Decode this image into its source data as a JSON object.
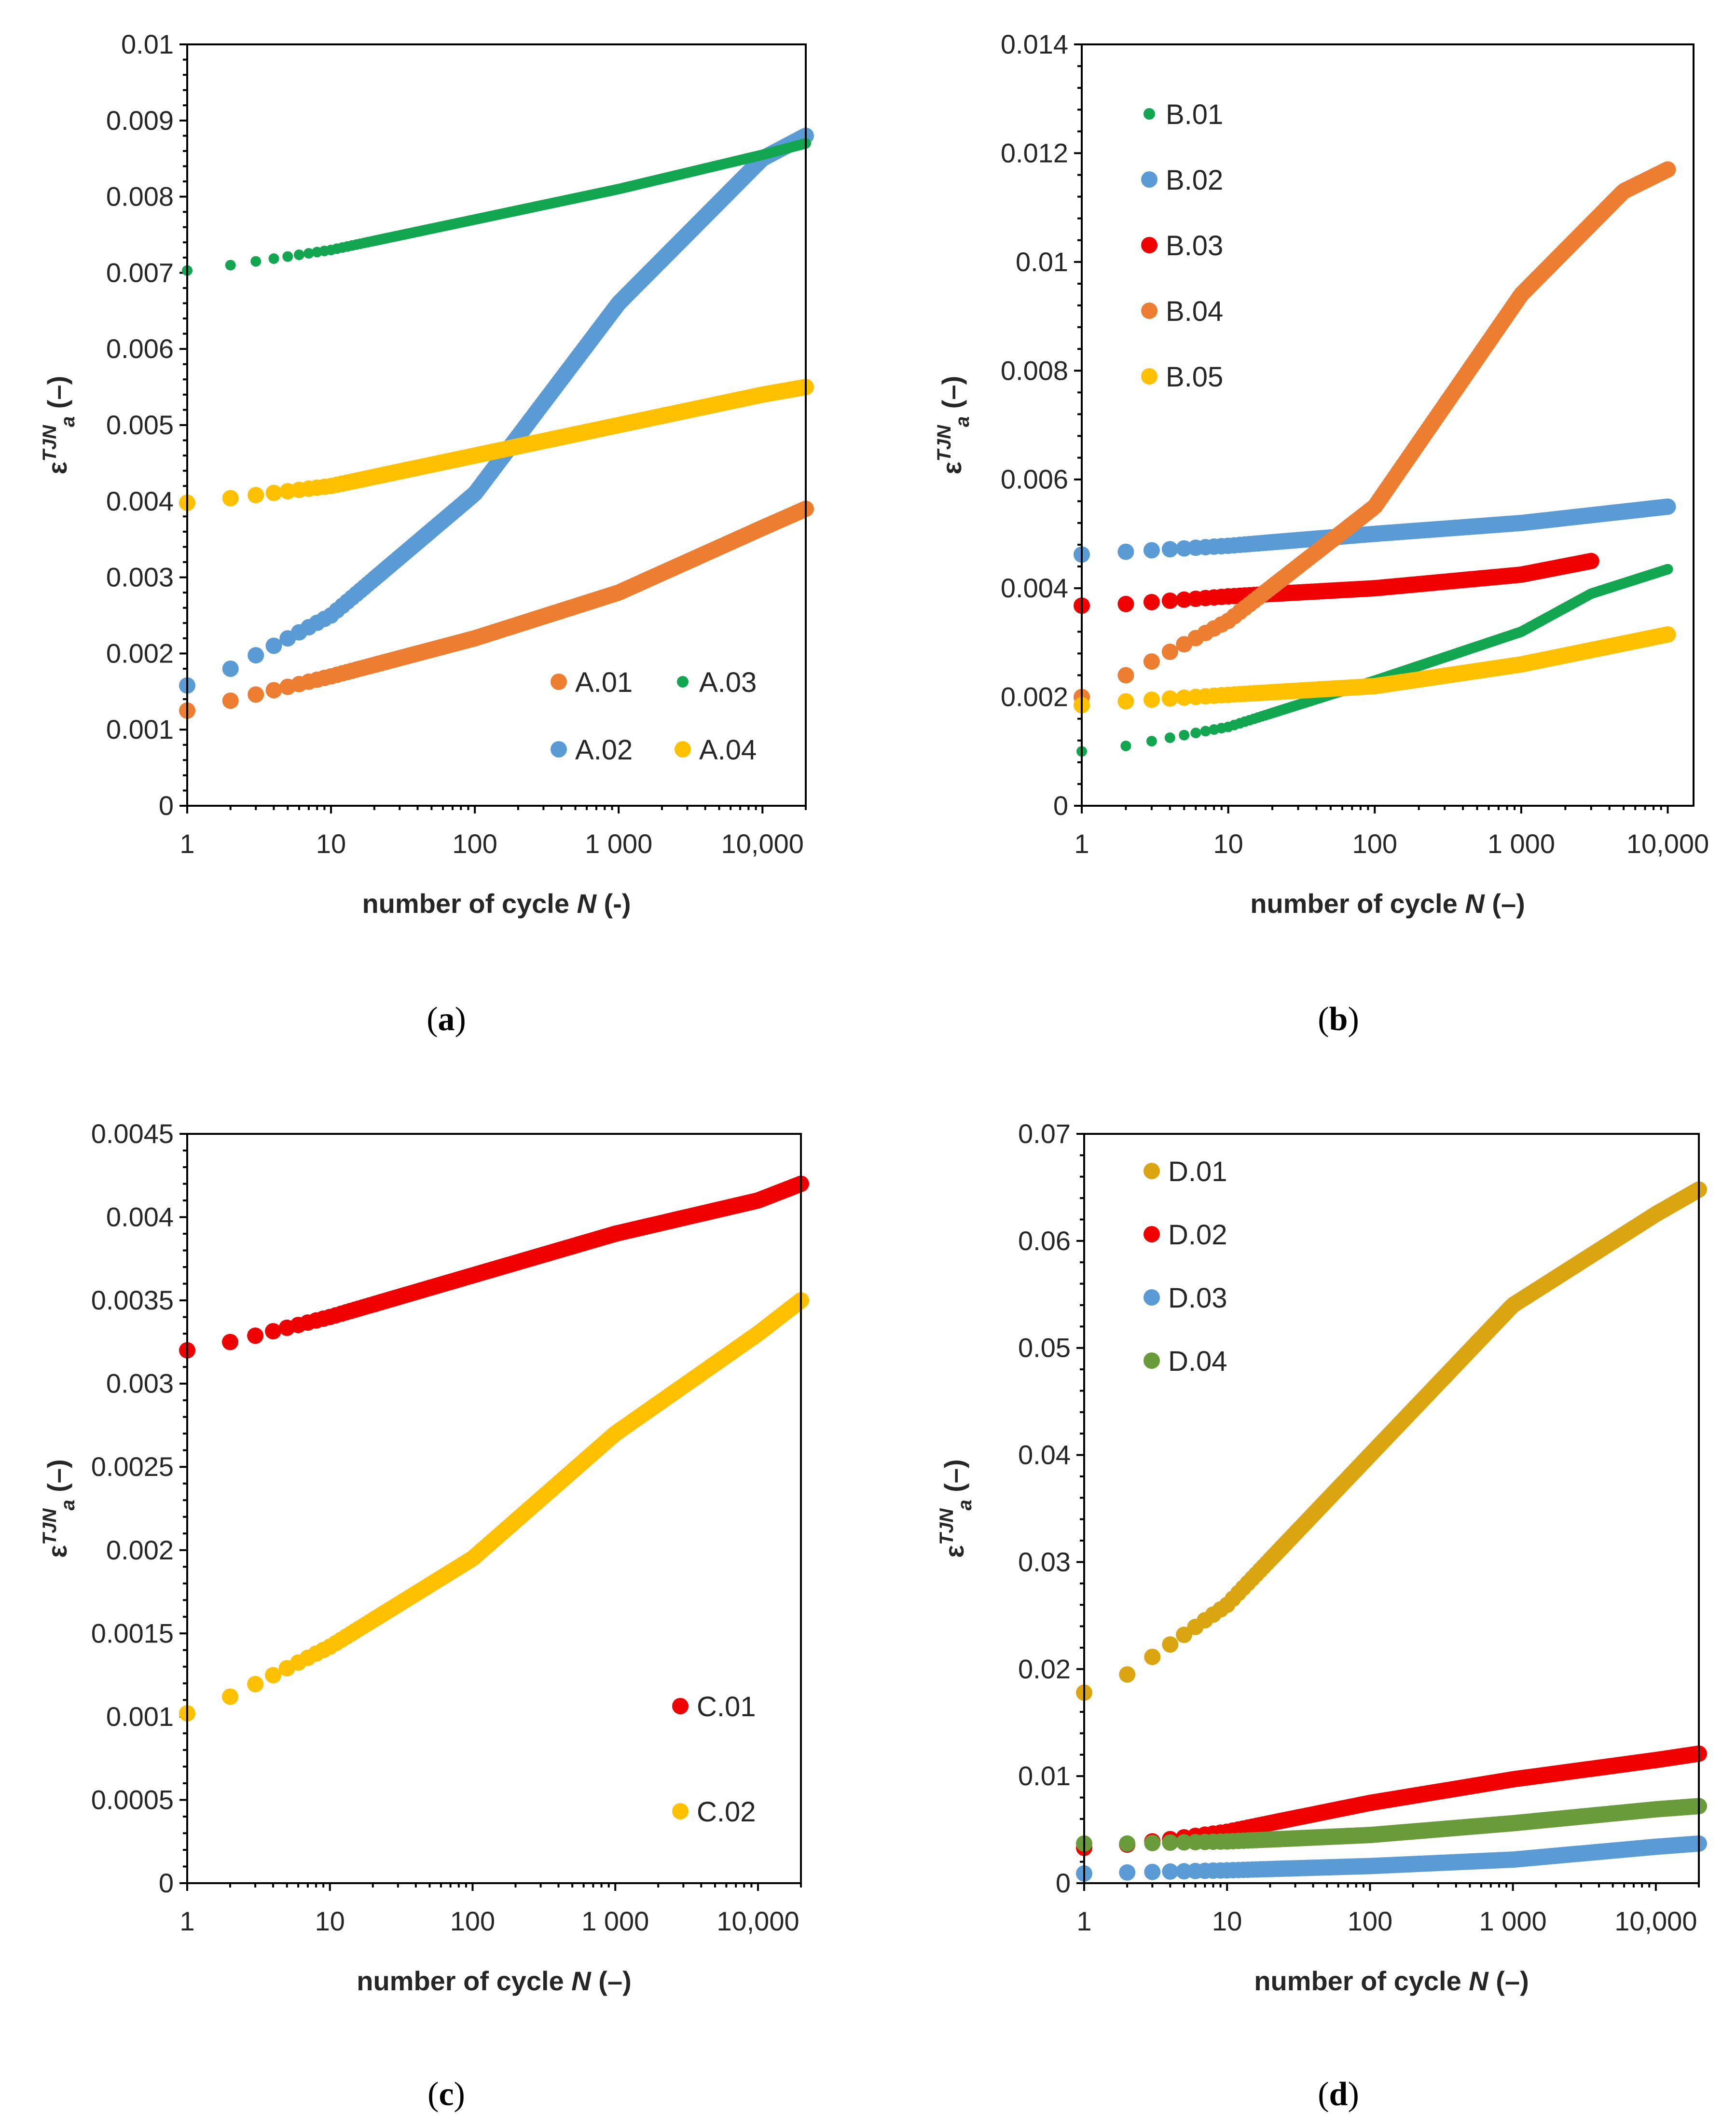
{
  "colors": {
    "orange": "#ED7D31",
    "blue": "#5B9BD5",
    "green": "#13A651",
    "yellow": "#FFC000",
    "red": "#F00000",
    "gold": "#DAA511",
    "olive": "#6A9B3A"
  },
  "chart_data": [
    {
      "type": "scatter",
      "panel": "a",
      "caption_letter": "a",
      "xscale": "log",
      "xlim": [
        1,
        20000
      ],
      "ylim": [
        0,
        0.01
      ],
      "yticks": [
        "0",
        "0.001",
        "0.002",
        "0.003",
        "0.004",
        "0.005",
        "0.006",
        "0.007",
        "0.008",
        "0.009",
        "0.01"
      ],
      "xticks": [
        "1",
        "10",
        "100",
        "1 000",
        "10,000"
      ],
      "ylabel": "ε^TJN_a (–)",
      "xlabel": "number of cycle N (-)",
      "legend_layout": "bottom-right, 2 columns",
      "series": [
        {
          "name": "A.01",
          "color": "#ED7D31",
          "marker": "large",
          "x": [
            1,
            2,
            10,
            100,
            1000,
            10000,
            20000
          ],
          "y": [
            0.00125,
            0.00138,
            0.0017,
            0.0022,
            0.0028,
            0.00365,
            0.0039
          ]
        },
        {
          "name": "A.02",
          "color": "#5B9BD5",
          "marker": "large",
          "x": [
            1,
            2,
            10,
            100,
            1000,
            10000,
            20000
          ],
          "y": [
            0.00158,
            0.0018,
            0.0025,
            0.0041,
            0.0066,
            0.0085,
            0.0088
          ]
        },
        {
          "name": "A.03",
          "color": "#13A651",
          "marker": "small",
          "x": [
            1,
            2,
            10,
            100,
            1000,
            10000,
            20000
          ],
          "y": [
            0.00703,
            0.0071,
            0.0073,
            0.0077,
            0.0081,
            0.00855,
            0.0087
          ]
        },
        {
          "name": "A.04",
          "color": "#FFC000",
          "marker": "large",
          "x": [
            1,
            2,
            10,
            100,
            1000,
            10000,
            20000
          ],
          "y": [
            0.00398,
            0.00404,
            0.0042,
            0.0046,
            0.005,
            0.0054,
            0.0055
          ]
        }
      ]
    },
    {
      "type": "scatter",
      "panel": "b",
      "caption_letter": "b",
      "xscale": "log",
      "xlim": [
        1,
        15000
      ],
      "ylim": [
        0,
        0.014
      ],
      "yticks": [
        "0",
        "0.002",
        "0.004",
        "0.006",
        "0.008",
        "0.01",
        "0.012",
        "0.014"
      ],
      "xticks": [
        "1",
        "10",
        "100",
        "1 000",
        "10,000"
      ],
      "ylabel": "ε^TJN_a (–)",
      "xlabel": "number of cycle N (–)",
      "legend_layout": "top-left, 1 column",
      "series": [
        {
          "name": "B.01",
          "color": "#13A651",
          "marker": "small",
          "x": [
            1,
            2,
            10,
            100,
            1000,
            3000,
            10000
          ],
          "y": [
            0.001,
            0.0011,
            0.00145,
            0.0023,
            0.0032,
            0.0039,
            0.00435
          ]
        },
        {
          "name": "B.02",
          "color": "#5B9BD5",
          "marker": "large",
          "x": [
            1,
            2,
            10,
            100,
            1000,
            10000
          ],
          "y": [
            0.00462,
            0.00467,
            0.00478,
            0.005,
            0.0052,
            0.0055
          ]
        },
        {
          "name": "B.03",
          "color": "#F00000",
          "marker": "large",
          "x": [
            1,
            2,
            10,
            100,
            1000,
            3000
          ],
          "y": [
            0.00368,
            0.00371,
            0.00385,
            0.004,
            0.00425,
            0.0045
          ]
        },
        {
          "name": "B.04",
          "color": "#ED7D31",
          "marker": "large",
          "x": [
            1,
            2,
            10,
            100,
            1000,
            5000,
            10000
          ],
          "y": [
            0.002,
            0.0024,
            0.0034,
            0.0055,
            0.0094,
            0.0113,
            0.0117
          ]
        },
        {
          "name": "B.05",
          "color": "#FFC000",
          "marker": "large",
          "x": [
            1,
            2,
            10,
            100,
            1000,
            10000
          ],
          "y": [
            0.00185,
            0.00192,
            0.00204,
            0.0022,
            0.0026,
            0.00315
          ]
        }
      ]
    },
    {
      "type": "scatter",
      "panel": "c",
      "caption_letter": "c",
      "xscale": "log",
      "xlim": [
        1,
        20000
      ],
      "ylim": [
        0,
        0.0045
      ],
      "yticks": [
        "0",
        "0.0005",
        "0.001",
        "0.0015",
        "0.002",
        "0.0025",
        "0.003",
        "0.0035",
        "0.004",
        "0.0045"
      ],
      "xticks": [
        "1",
        "10",
        "100",
        "1 000",
        "10,000"
      ],
      "ylabel": "ε^TJN_a (–)",
      "xlabel": "number of cycle N (–)",
      "legend_layout": "bottom-right, 1 column",
      "series": [
        {
          "name": "C.01",
          "color": "#F00000",
          "marker": "large",
          "x": [
            1,
            2,
            10,
            100,
            1000,
            10000,
            20000
          ],
          "y": [
            0.0032,
            0.00325,
            0.0034,
            0.00365,
            0.0039,
            0.0041,
            0.0042
          ]
        },
        {
          "name": "C.02",
          "color": "#FFC000",
          "marker": "large",
          "x": [
            1,
            2,
            10,
            100,
            1000,
            10000,
            20000
          ],
          "y": [
            0.00102,
            0.00112,
            0.00142,
            0.00195,
            0.0027,
            0.0033,
            0.0035
          ]
        }
      ]
    },
    {
      "type": "scatter",
      "panel": "d",
      "caption_letter": "d",
      "xscale": "log",
      "xlim": [
        1,
        20000
      ],
      "ylim": [
        0,
        0.07
      ],
      "yticks": [
        "0",
        "0.01",
        "0.02",
        "0.03",
        "0.04",
        "0.05",
        "0.06",
        "0.07"
      ],
      "xticks": [
        "1",
        "10",
        "100",
        "1 000",
        "10,000"
      ],
      "ylabel": "ε^TJN_a (–)",
      "xlabel": "number of cycle N (–)",
      "legend_layout": "top-left, 1 column",
      "series": [
        {
          "name": "D.01",
          "color": "#DAA511",
          "marker": "large",
          "x": [
            1,
            2,
            10,
            100,
            1000,
            10000,
            20000
          ],
          "y": [
            0.0178,
            0.0195,
            0.026,
            0.04,
            0.054,
            0.0625,
            0.0648
          ]
        },
        {
          "name": "D.02",
          "color": "#F00000",
          "marker": "large",
          "x": [
            1,
            2,
            10,
            100,
            1000,
            10000,
            20000
          ],
          "y": [
            0.0033,
            0.0036,
            0.0048,
            0.0075,
            0.0097,
            0.0115,
            0.0121
          ]
        },
        {
          "name": "D.03",
          "color": "#5B9BD5",
          "marker": "large",
          "x": [
            1,
            2,
            10,
            100,
            1000,
            10000,
            20000
          ],
          "y": [
            0.0009,
            0.001,
            0.0012,
            0.0016,
            0.0022,
            0.0034,
            0.0037
          ]
        },
        {
          "name": "D.04",
          "color": "#6A9B3A",
          "marker": "large",
          "x": [
            1,
            2,
            10,
            100,
            1000,
            10000,
            20000
          ],
          "y": [
            0.0037,
            0.0037,
            0.0039,
            0.0045,
            0.0056,
            0.0069,
            0.0072
          ]
        }
      ]
    }
  ]
}
